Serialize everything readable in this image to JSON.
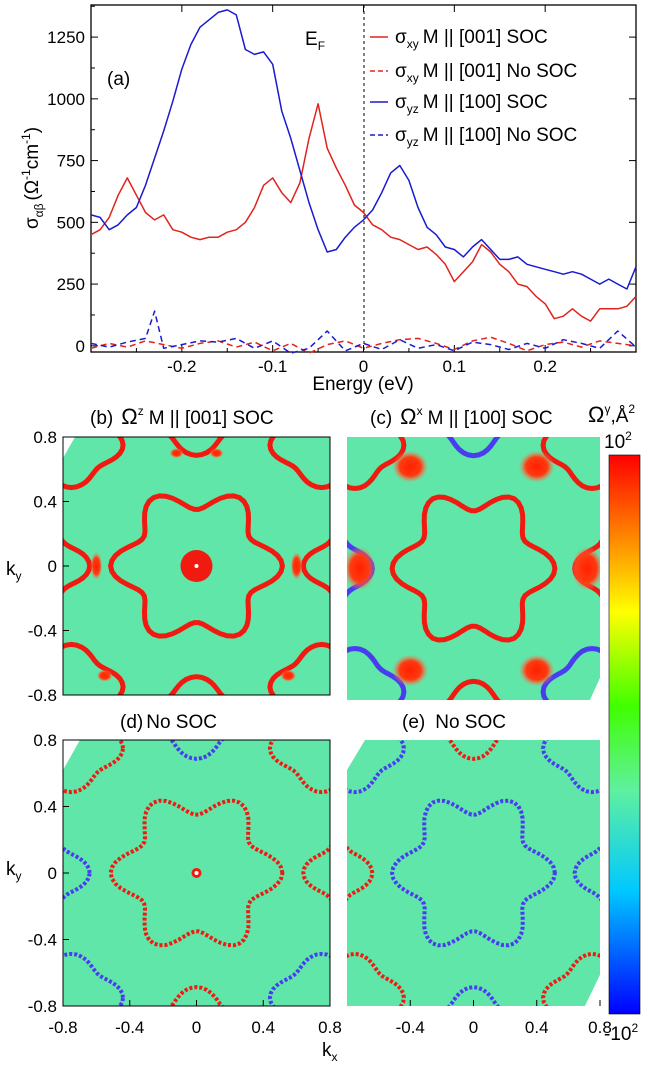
{
  "chart_data": [
    {
      "type": "line",
      "panel": "(a)",
      "annotation": "E",
      "annotation_sub": "F",
      "xlabel": "Energy (eV)",
      "ylabel": "σ",
      "ylabel_sub": "αβ",
      "ylabel_unit": "(Ω",
      "ylabel_unit_sup1": "-1",
      "ylabel_unit_mid": "cm",
      "ylabel_unit_sup2": "-1",
      "ylabel_unit_end": ")",
      "xlim": [
        -0.3,
        0.3
      ],
      "ylim": [
        -25,
        1380
      ],
      "xticks": [
        -0.2,
        -0.1,
        0,
        0.1,
        0.2
      ],
      "xtick_labels": [
        "-0.2",
        "-0.1",
        "0",
        "0.1",
        "0.2"
      ],
      "yticks": [
        0,
        250,
        500,
        750,
        1000,
        1250
      ],
      "ytick_labels": [
        "0",
        "250",
        "500",
        "750",
        "1000",
        "1250"
      ],
      "legend_position": "top-right",
      "series": [
        {
          "name_sym": "σ",
          "name_sub": "xy",
          "name_rest": "M || [001] SOC",
          "color": "#e0241c",
          "dash": "solid",
          "x": [
            -0.3,
            -0.29,
            -0.28,
            -0.27,
            -0.26,
            -0.25,
            -0.24,
            -0.23,
            -0.22,
            -0.21,
            -0.2,
            -0.19,
            -0.18,
            -0.17,
            -0.16,
            -0.15,
            -0.14,
            -0.13,
            -0.12,
            -0.11,
            -0.1,
            -0.09,
            -0.08,
            -0.07,
            -0.06,
            -0.05,
            -0.04,
            -0.03,
            -0.02,
            -0.01,
            0,
            0.01,
            0.02,
            0.03,
            0.04,
            0.05,
            0.06,
            0.07,
            0.08,
            0.09,
            0.1,
            0.11,
            0.12,
            0.13,
            0.14,
            0.15,
            0.16,
            0.17,
            0.18,
            0.19,
            0.2,
            0.21,
            0.22,
            0.23,
            0.24,
            0.25,
            0.26,
            0.27,
            0.28,
            0.29,
            0.3
          ],
          "y": [
            450,
            470,
            520,
            610,
            680,
            610,
            540,
            510,
            530,
            470,
            460,
            440,
            430,
            440,
            440,
            460,
            470,
            500,
            560,
            650,
            680,
            620,
            580,
            660,
            840,
            980,
            800,
            720,
            650,
            570,
            540,
            490,
            470,
            440,
            430,
            410,
            390,
            400,
            370,
            330,
            260,
            300,
            340,
            410,
            380,
            330,
            300,
            250,
            240,
            200,
            170,
            110,
            120,
            150,
            120,
            100,
            150,
            150,
            150,
            160,
            200
          ],
          "_unused": null
        },
        {
          "name_sym": "σ",
          "name_sub": "xy",
          "name_rest": "M || [001] No SOC",
          "color": "#e0241c",
          "dash": "dashed",
          "x": [
            -0.3,
            -0.28,
            -0.26,
            -0.24,
            -0.22,
            -0.2,
            -0.18,
            -0.16,
            -0.14,
            -0.12,
            -0.1,
            -0.08,
            -0.06,
            -0.04,
            -0.02,
            0,
            0.02,
            0.04,
            0.06,
            0.08,
            0.1,
            0.12,
            0.14,
            0.16,
            0.18,
            0.2,
            0.22,
            0.24,
            0.26,
            0.28,
            0.3
          ],
          "y": [
            -10,
            10,
            -5,
            20,
            5,
            -10,
            10,
            20,
            -5,
            15,
            -20,
            10,
            -30,
            5,
            20,
            -10,
            10,
            25,
            30,
            10,
            -15,
            20,
            35,
            10,
            -20,
            5,
            15,
            -5,
            20,
            10,
            0
          ]
        },
        {
          "name_sym": "σ",
          "name_sub": "yz",
          "name_rest": "M || [100] SOC",
          "color": "#1a1ad0",
          "dash": "solid",
          "x": [
            -0.3,
            -0.29,
            -0.28,
            -0.27,
            -0.26,
            -0.25,
            -0.24,
            -0.23,
            -0.22,
            -0.21,
            -0.2,
            -0.19,
            -0.18,
            -0.17,
            -0.16,
            -0.15,
            -0.14,
            -0.13,
            -0.12,
            -0.11,
            -0.1,
            -0.09,
            -0.08,
            -0.07,
            -0.06,
            -0.05,
            -0.04,
            -0.03,
            -0.02,
            -0.01,
            0,
            0.01,
            0.02,
            0.03,
            0.04,
            0.05,
            0.06,
            0.07,
            0.08,
            0.09,
            0.1,
            0.11,
            0.12,
            0.13,
            0.14,
            0.15,
            0.16,
            0.17,
            0.18,
            0.19,
            0.2,
            0.21,
            0.22,
            0.23,
            0.24,
            0.25,
            0.26,
            0.27,
            0.28,
            0.29,
            0.3
          ],
          "y": [
            530,
            520,
            470,
            490,
            530,
            560,
            650,
            760,
            870,
            990,
            1120,
            1220,
            1290,
            1320,
            1350,
            1360,
            1340,
            1200,
            1180,
            1190,
            1140,
            950,
            840,
            710,
            580,
            470,
            380,
            390,
            440,
            480,
            510,
            550,
            620,
            700,
            730,
            670,
            560,
            480,
            450,
            400,
            390,
            360,
            400,
            430,
            390,
            350,
            350,
            360,
            330,
            320,
            310,
            300,
            290,
            300,
            290,
            270,
            250,
            270,
            250,
            230,
            320
          ]
        },
        {
          "name_sym": "σ",
          "name_sub": "yz",
          "name_rest": "M || [100] No SOC",
          "color": "#1a1ad0",
          "dash": "dashed",
          "x": [
            -0.3,
            -0.28,
            -0.26,
            -0.24,
            -0.23,
            -0.22,
            -0.2,
            -0.18,
            -0.16,
            -0.14,
            -0.12,
            -0.1,
            -0.08,
            -0.06,
            -0.04,
            -0.02,
            0,
            0.02,
            0.04,
            0.06,
            0.08,
            0.1,
            0.12,
            0.14,
            0.16,
            0.18,
            0.2,
            0.22,
            0.24,
            0.26,
            0.28,
            0.3
          ],
          "y": [
            10,
            -5,
            15,
            30,
            140,
            -10,
            5,
            20,
            15,
            30,
            -10,
            20,
            -30,
            -10,
            60,
            -20,
            10,
            -15,
            25,
            -10,
            5,
            -20,
            15,
            5,
            -15,
            10,
            -10,
            25,
            10,
            -10,
            60,
            -5
          ]
        }
      ]
    },
    {
      "type": "heatmap",
      "title_text": "(b)",
      "title_sym": "Ω",
      "title_sup": "z",
      "title_rest": "M || [001] SOC",
      "ylabel": "k",
      "ylabel_sub": "y",
      "yticks": [
        0.8,
        0.4,
        0,
        -0.4,
        -0.8
      ],
      "ytick_labels": [
        "0.8",
        "0.4",
        "0",
        "-0.4",
        "-0.8"
      ],
      "xlim": [
        -0.8,
        0.8
      ],
      "ylim": [
        -0.8,
        0.8
      ]
    },
    {
      "type": "heatmap",
      "title_text": "(c)",
      "title_sym": "Ω",
      "title_sup": "x",
      "title_rest": "M || [100] SOC",
      "xlim": [
        -0.8,
        0.8
      ],
      "ylim": [
        -0.8,
        0.8
      ]
    },
    {
      "type": "heatmap",
      "title_text": "(d)",
      "title_rest": "No SOC",
      "ylabel": "k",
      "ylabel_sub": "y",
      "yticks": [
        0.8,
        0.4,
        0,
        -0.4,
        -0.8
      ],
      "ytick_labels": [
        "0.8",
        "0.4",
        "0",
        "-0.4",
        "-0.8"
      ],
      "xticks": [
        -0.8,
        -0.4,
        0,
        0.4,
        0.8
      ],
      "xtick_labels": [
        "-0.8",
        "-0.4",
        "0",
        "0.4",
        "0.8"
      ],
      "xlim": [
        -0.8,
        0.8
      ],
      "ylim": [
        -0.8,
        0.8
      ]
    },
    {
      "type": "heatmap",
      "title_text": "(e)",
      "title_rest": "No SOC",
      "xlabel": "k",
      "xlabel_sub": "x",
      "xticks": [
        -0.4,
        0,
        0.4,
        0.8
      ],
      "xtick_labels": [
        "-0.4",
        "0",
        "0.4",
        "0.8"
      ],
      "xlim": [
        -0.8,
        0.8
      ],
      "ylim": [
        -0.8,
        0.8
      ]
    }
  ],
  "colorbar": {
    "label_sym": "Ω",
    "label_sup": "γ",
    "label_unit": ",Å",
    "label_unit_sup": "2",
    "max_label": "10",
    "max_label_sup": "2",
    "min_label": "-10",
    "min_label_sup": "2",
    "colors": [
      "#0000ff",
      "#00c8ff",
      "#5ff0a0",
      "#40ff00",
      "#ffff00",
      "#ff8000",
      "#ff0000"
    ]
  }
}
